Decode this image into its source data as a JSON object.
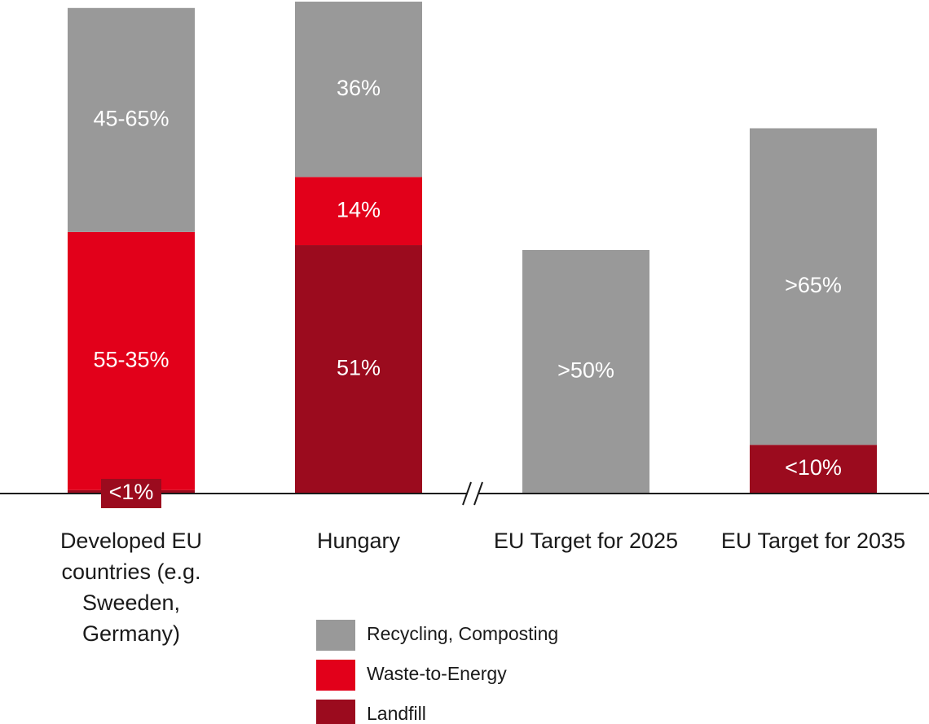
{
  "chart_data": {
    "type": "stacked_bar",
    "categories": [
      "Developed EU countries (e.g. Sweeden, Germany)",
      "Hungary",
      "EU Target for 2025",
      "EU Target for 2035"
    ],
    "series": [
      {
        "name": "Recycling, Composting",
        "color": "#999999",
        "values": [
          46,
          36,
          50,
          65
        ],
        "value_labels": [
          "45-65%",
          "36%",
          ">50%",
          ">65%"
        ]
      },
      {
        "name": "Waste-to-Energy",
        "color": "#e2001a",
        "values": [
          53,
          14,
          null,
          null
        ],
        "value_labels": [
          "55-35%",
          "14%",
          null,
          null
        ]
      },
      {
        "name": "Landfill",
        "color": "#9b0b1e",
        "values": [
          0.7,
          51,
          null,
          10
        ],
        "value_labels": [
          "<1%",
          "51%",
          null,
          "<10%"
        ]
      }
    ],
    "ylim": [
      0,
      100
    ]
  }
}
